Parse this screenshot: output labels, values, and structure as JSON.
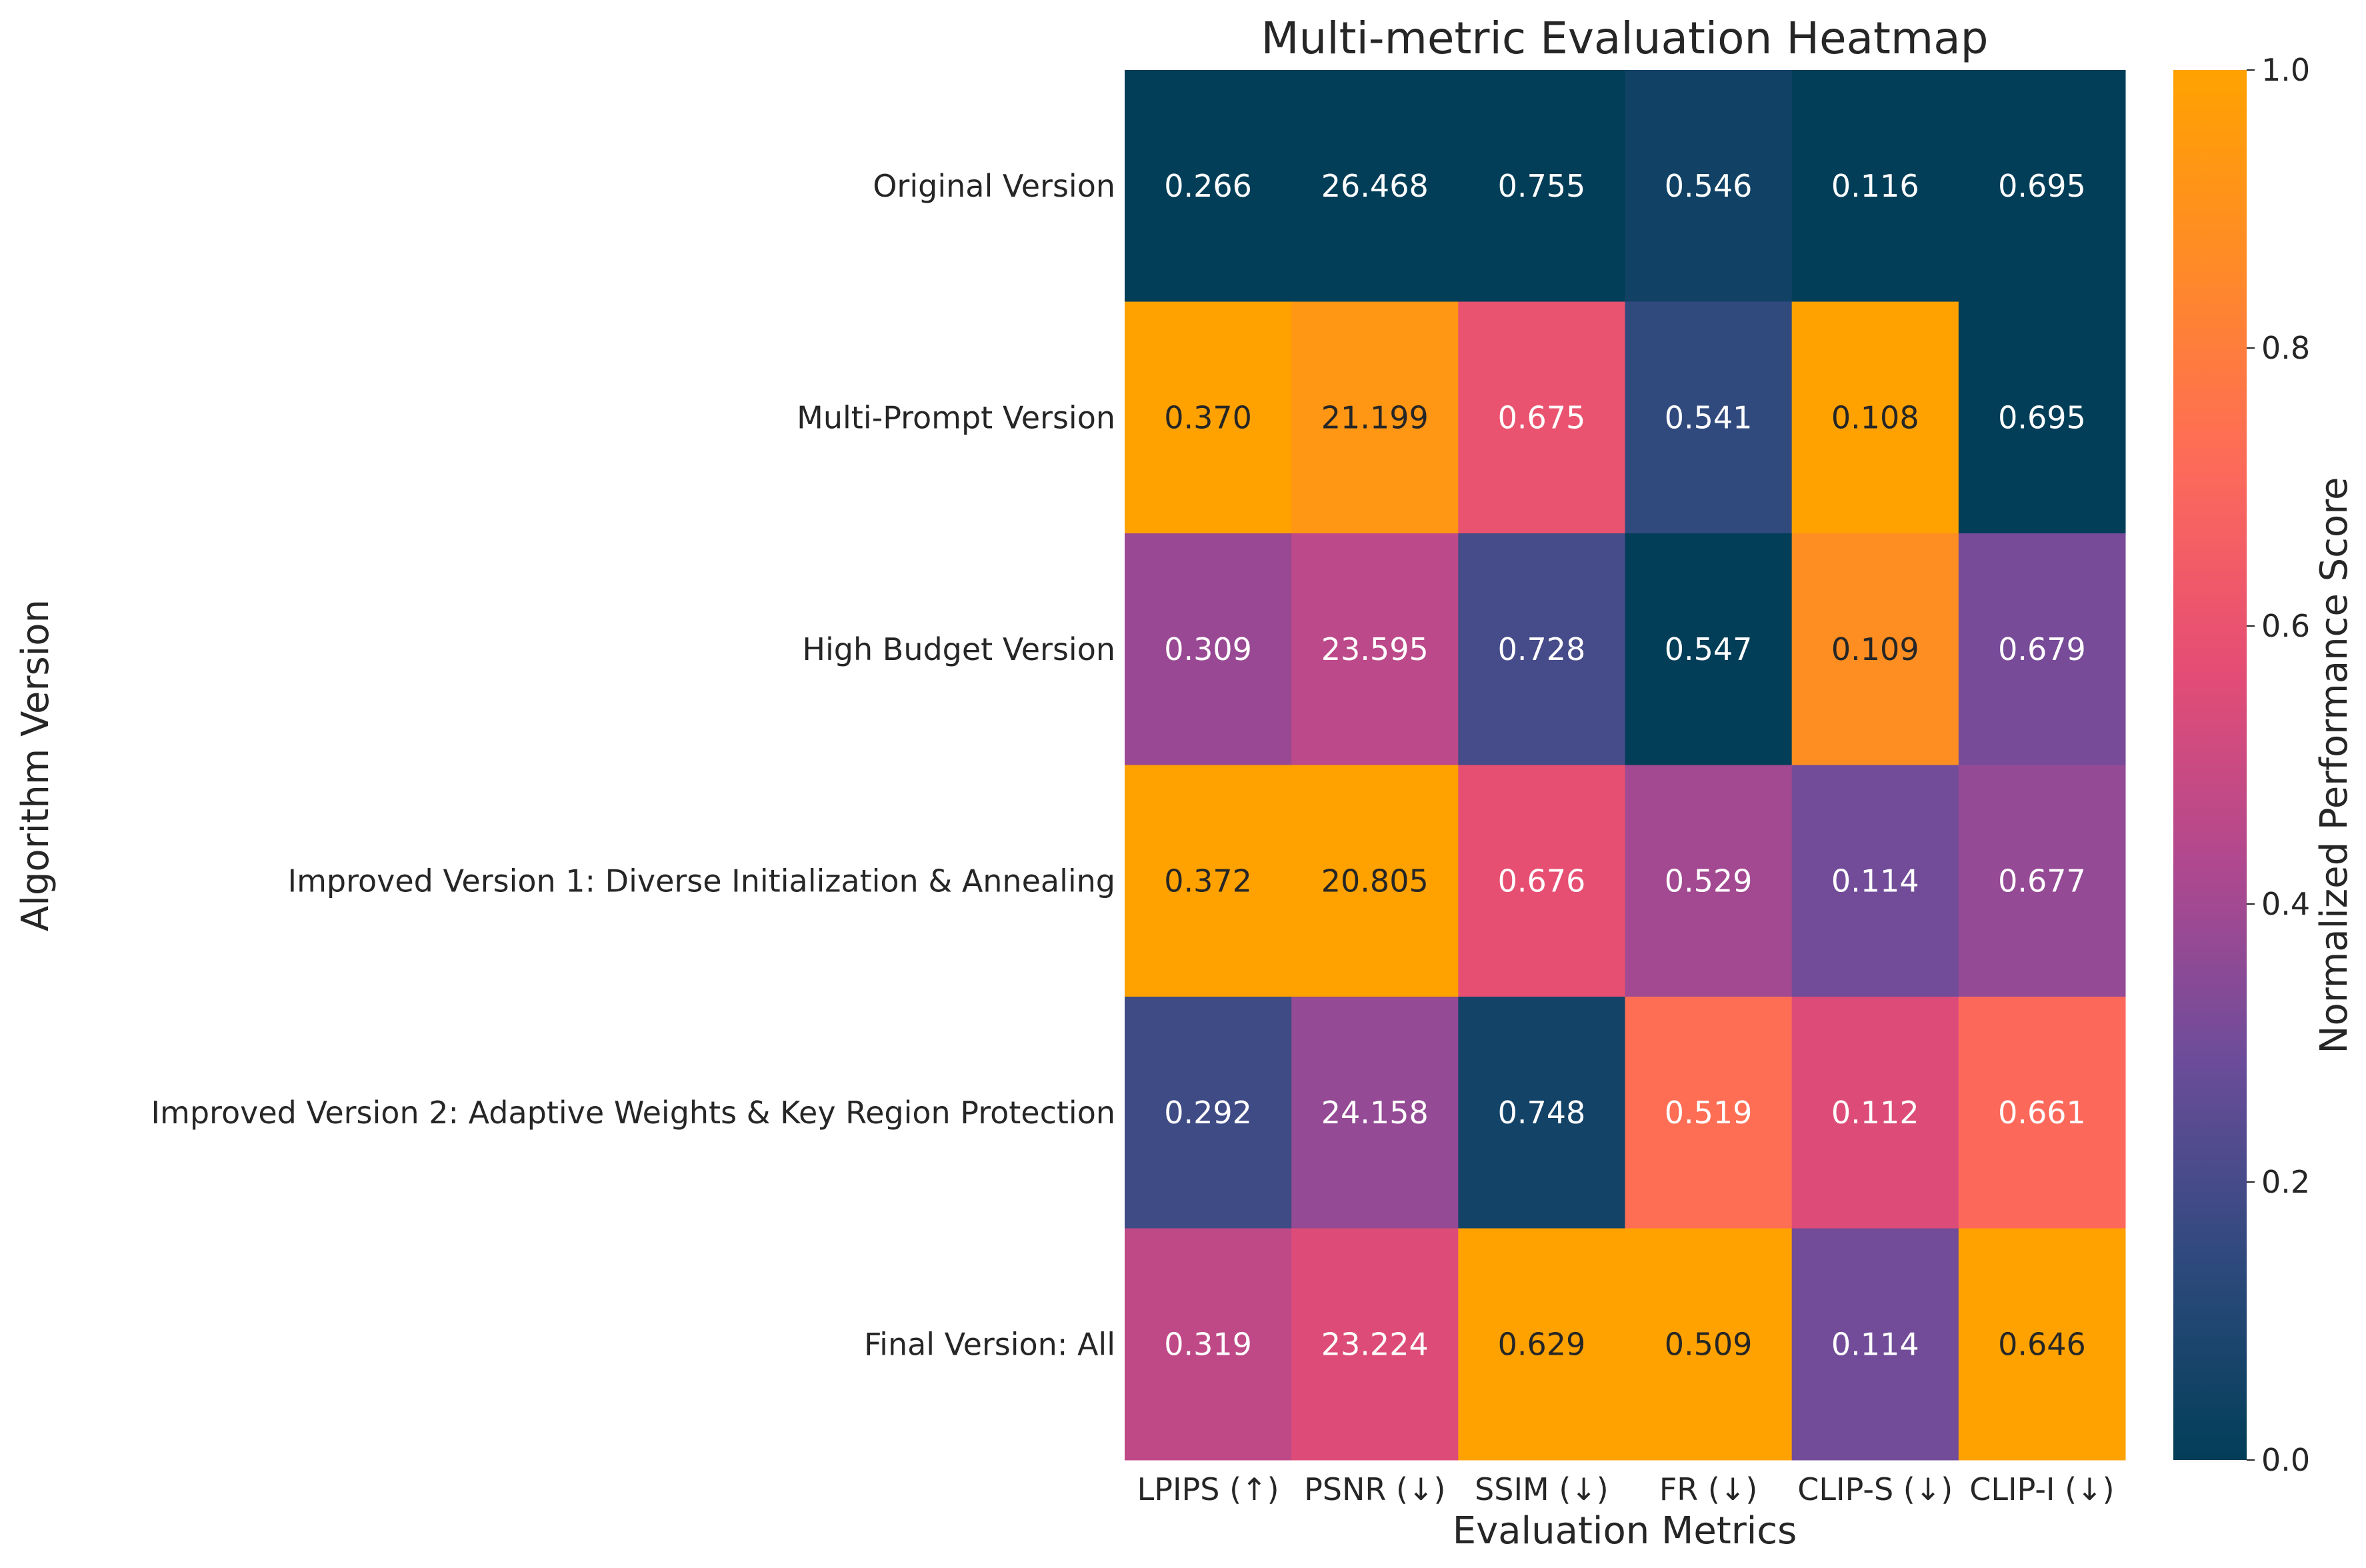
{
  "chart_data": {
    "type": "heatmap",
    "title": "Multi-metric Evaluation Heatmap",
    "xlabel": "Evaluation Metrics",
    "ylabel": "Algorithm Version",
    "colorbar_label": "Normalized Performance Score",
    "colorbar_range": [
      0.0,
      1.0
    ],
    "colorbar_ticks": [
      "0.0",
      "0.2",
      "0.4",
      "0.6",
      "0.8",
      "1.0"
    ],
    "colormap": [
      "#023e58",
      "#2e4a7d",
      "#6b4c9a",
      "#b0488f",
      "#e54d74",
      "#fd6a5a",
      "#ff8a28",
      "#ffa200"
    ],
    "columns": [
      "LPIPS (↑)",
      "PSNR (↓)",
      "SSIM (↓)",
      "FR (↓)",
      "CLIP-S (↓)",
      "CLIP-I (↓)"
    ],
    "rows": [
      "Original Version",
      "Multi-Prompt Version",
      "High Budget Version",
      "Improved Version 1: Diverse Initialization & Annealing",
      "Improved Version 2: Adaptive Weights & Key Region Protection",
      "Final Version: All"
    ],
    "values": [
      [
        "0.266",
        "26.468",
        "0.755",
        "0.546",
        "0.116",
        "0.695"
      ],
      [
        "0.370",
        "21.199",
        "0.675",
        "0.541",
        "0.108",
        "0.695"
      ],
      [
        "0.309",
        "23.595",
        "0.728",
        "0.547",
        "0.109",
        "0.679"
      ],
      [
        "0.372",
        "20.805",
        "0.676",
        "0.529",
        "0.114",
        "0.677"
      ],
      [
        "0.292",
        "24.158",
        "0.748",
        "0.519",
        "0.112",
        "0.661"
      ],
      [
        "0.319",
        "23.224",
        "0.629",
        "0.509",
        "0.114",
        "0.646"
      ]
    ],
    "normalized": [
      [
        0.0,
        0.0,
        0.0,
        0.05,
        0.0,
        0.0
      ],
      [
        1.0,
        0.93,
        0.6,
        0.15,
        1.0,
        0.0
      ],
      [
        0.38,
        0.46,
        0.2,
        0.0,
        0.88,
        0.31
      ],
      [
        1.0,
        1.0,
        0.58,
        0.4,
        0.3,
        0.37
      ],
      [
        0.18,
        0.37,
        0.06,
        0.73,
        0.55,
        0.71
      ],
      [
        0.47,
        0.55,
        1.0,
        1.0,
        0.3,
        1.0
      ]
    ]
  }
}
